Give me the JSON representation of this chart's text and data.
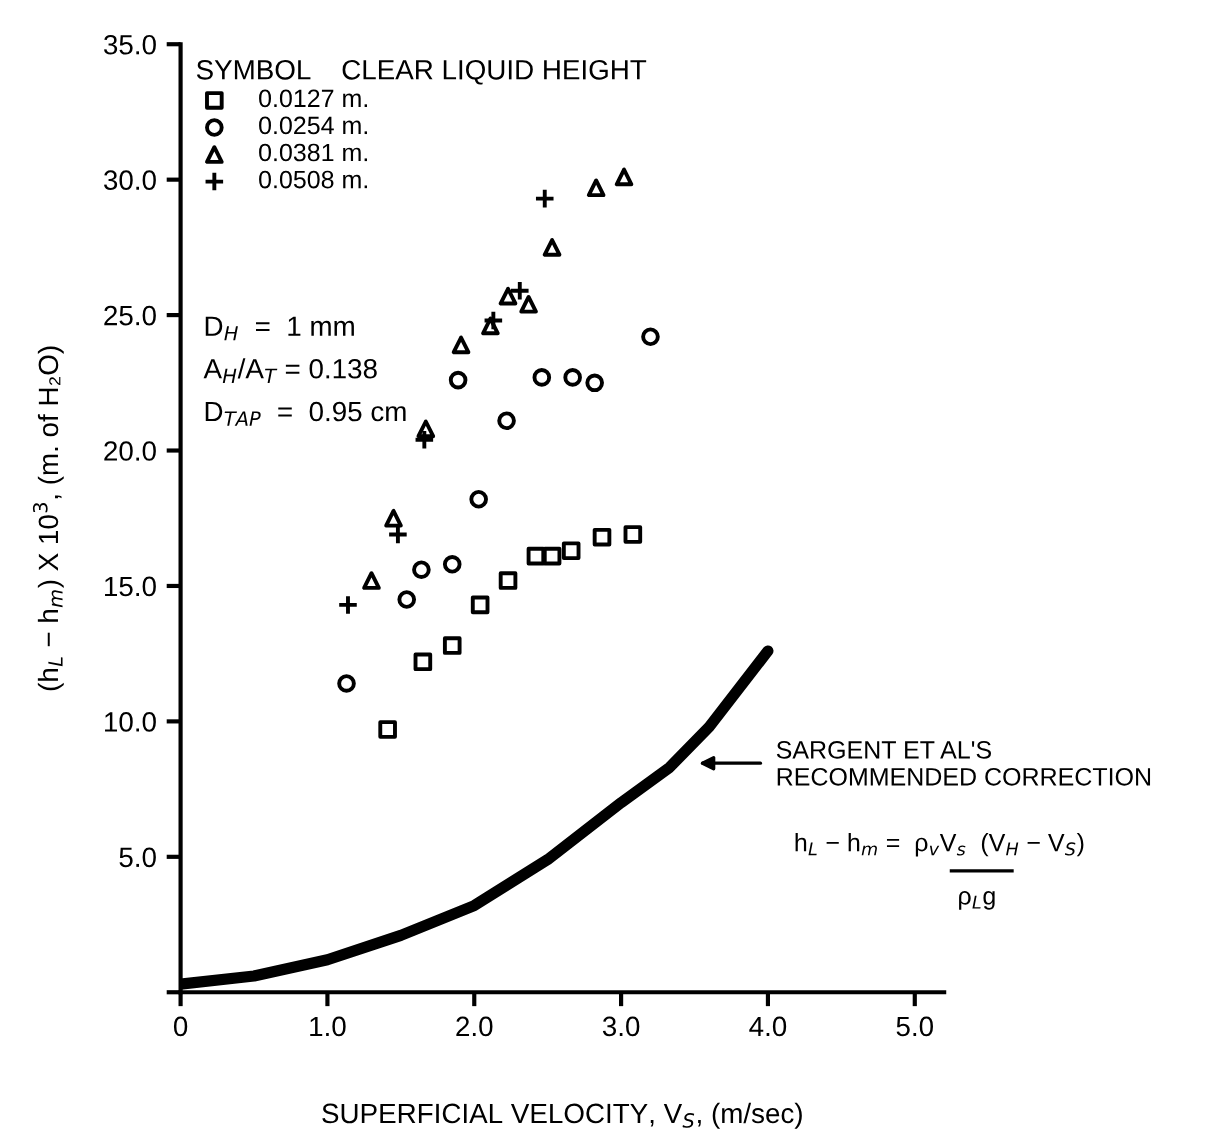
{
  "chart_data": {
    "type": "scatter",
    "xlabel": "SUPERFICIAL VELOCITY, V$_{S}$, (m/sec)",
    "ylabel": "(h$_{L}$ − h$_{m}$) X 10$^{3}$, (m. of H₂O)",
    "legend_title": "SYMBOL    CLEAR LIQUID HEIGHT",
    "legend": "top left",
    "grid": false,
    "xlim": [
      0,
      5.2
    ],
    "ylim": [
      0,
      35
    ],
    "xticks": [
      {
        "value": 0,
        "label": "0"
      },
      {
        "value": 1,
        "label": "1.0"
      },
      {
        "value": 2,
        "label": "2.0"
      },
      {
        "value": 3,
        "label": "3.0"
      },
      {
        "value": 4,
        "label": "4.0"
      },
      {
        "value": 5,
        "label": "5.0"
      }
    ],
    "yticks": [
      {
        "value": 0,
        "label": null
      },
      {
        "value": 5,
        "label": "5.0"
      },
      {
        "value": 10,
        "label": "10.0"
      },
      {
        "value": 15,
        "label": "15.0"
      },
      {
        "value": 20,
        "label": "20.0"
      },
      {
        "value": 25,
        "label": "25.0"
      },
      {
        "value": 30,
        "label": "30.0"
      },
      {
        "value": 35,
        "label": "35.0"
      }
    ],
    "series": [
      {
        "name": "0.0127 m.",
        "marker": "square",
        "color": "#000000",
        "x": [
          1.41,
          1.65,
          1.85,
          2.04,
          2.23,
          2.42,
          2.53,
          2.66,
          2.87,
          3.08
        ],
        "values": [
          9.7,
          12.2,
          12.8,
          14.3,
          15.2,
          16.1,
          16.1,
          16.3,
          16.8,
          16.9
        ]
      },
      {
        "name": "0.0254 m.",
        "marker": "circle",
        "color": "#000000",
        "x": [
          1.13,
          1.54,
          1.64,
          1.85,
          2.03,
          2.22,
          1.89,
          2.46,
          2.67,
          2.82,
          3.2
        ],
        "values": [
          11.4,
          14.5,
          15.6,
          15.8,
          18.2,
          21.1,
          22.6,
          22.7,
          22.7,
          22.5,
          24.2
        ]
      },
      {
        "name": "0.0381 m.",
        "marker": "triangle",
        "color": "#000000",
        "x": [
          1.3,
          1.45,
          1.67,
          1.91,
          2.11,
          2.23,
          2.37,
          2.53,
          2.83,
          3.02
        ],
        "values": [
          15.2,
          17.5,
          20.8,
          23.9,
          24.6,
          25.7,
          25.4,
          27.5,
          29.7,
          30.1
        ]
      },
      {
        "name": "0.0508 m.",
        "marker": "cross",
        "color": "#000000",
        "x": [
          1.14,
          1.48,
          1.66,
          2.13,
          2.31,
          2.48
        ],
        "values": [
          14.3,
          16.9,
          20.4,
          24.8,
          25.9,
          29.3
        ]
      },
      {
        "type": "line",
        "marker": "none",
        "line_style": "solid",
        "color": "#000000",
        "x": [
          0,
          0.5,
          1.0,
          1.5,
          2.0,
          2.5,
          3.0,
          3.33,
          3.6,
          4.0
        ],
        "values": [
          0.3,
          0.6,
          1.2,
          2.1,
          3.2,
          4.9,
          7.0,
          8.3,
          9.8,
          12.6
        ]
      }
    ],
    "annotations": [
      "D$_{H}$  =  1 mm",
      "A$_{H}$/A$_{T}$ = 0.138",
      "D$_{TAP}$  =  0.95 cm",
      "SARGENT ET AL'S\nRECOMMENDED CORRECTION",
      "h$_{L}$ − h$_{m}$ =  ρ$_{v}$V$_{s}$  (V$_{H}$ − V$_{S}$)",
      "ρ$_{L}$g"
    ]
  }
}
